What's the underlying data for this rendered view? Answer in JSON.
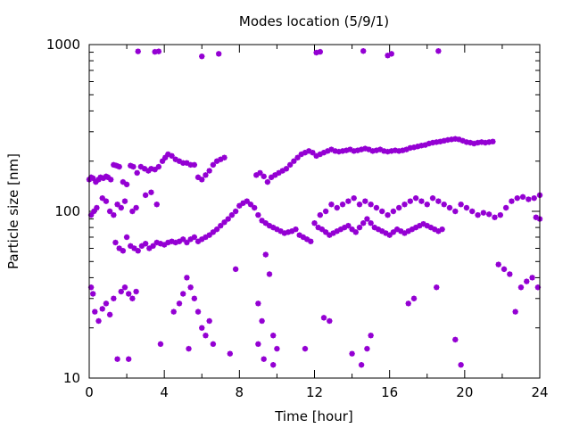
{
  "chart_data": {
    "type": "scatter",
    "title": "Modes location (5/9/1)",
    "xlabel": "Time [hour]",
    "ylabel": "Particle size [nm]",
    "xlim": [
      0,
      24
    ],
    "ylim": [
      10,
      1000
    ],
    "yscale": "log",
    "grid": false,
    "legend": "none",
    "marker_color": "#9400d3",
    "x_ticks": [
      0,
      4,
      8,
      12,
      16,
      20,
      24
    ],
    "x_tick_labels": [
      "0",
      "4",
      "8",
      "12",
      "16",
      "20",
      "24"
    ],
    "y_ticks": [
      10,
      100,
      1000
    ],
    "y_tick_labels": [
      "10",
      "100",
      "1000"
    ],
    "series": [
      {
        "points": [
          [
            0.0,
            155
          ],
          [
            0.1,
            160
          ],
          [
            0.2,
            158
          ],
          [
            0.35,
            150
          ],
          [
            0.5,
            155
          ],
          [
            0.6,
            160
          ],
          [
            0.75,
            158
          ],
          [
            0.9,
            162
          ],
          [
            1.0,
            160
          ],
          [
            1.15,
            155
          ],
          [
            1.3,
            190
          ],
          [
            1.45,
            188
          ],
          [
            1.6,
            185
          ],
          [
            1.8,
            150
          ],
          [
            2.0,
            145
          ],
          [
            2.2,
            188
          ],
          [
            2.35,
            185
          ],
          [
            2.55,
            170
          ],
          [
            2.75,
            185
          ],
          [
            2.95,
            180
          ],
          [
            3.15,
            175
          ],
          [
            3.3,
            180
          ],
          [
            3.5,
            178
          ],
          [
            3.7,
            185
          ],
          [
            3.9,
            200
          ],
          [
            4.05,
            210
          ],
          [
            4.2,
            220
          ],
          [
            4.4,
            215
          ],
          [
            4.6,
            205
          ],
          [
            4.8,
            200
          ],
          [
            5.0,
            195
          ],
          [
            5.2,
            195
          ],
          [
            5.4,
            190
          ],
          [
            5.6,
            190
          ],
          [
            5.8,
            160
          ],
          [
            6.0,
            155
          ],
          [
            6.2,
            165
          ],
          [
            6.4,
            175
          ],
          [
            6.6,
            190
          ],
          [
            6.8,
            200
          ],
          [
            7.0,
            205
          ],
          [
            7.2,
            210
          ],
          [
            8.9,
            165
          ],
          [
            9.1,
            170
          ],
          [
            9.3,
            162
          ],
          [
            9.5,
            150
          ],
          [
            9.7,
            160
          ],
          [
            9.9,
            165
          ],
          [
            10.1,
            170
          ],
          [
            10.3,
            175
          ],
          [
            10.5,
            180
          ],
          [
            10.7,
            190
          ],
          [
            10.9,
            200
          ],
          [
            11.1,
            210
          ],
          [
            11.3,
            220
          ],
          [
            11.5,
            225
          ],
          [
            11.7,
            230
          ],
          [
            11.9,
            225
          ],
          [
            12.1,
            215
          ],
          [
            12.3,
            220
          ],
          [
            12.5,
            225
          ],
          [
            12.7,
            230
          ],
          [
            12.9,
            235
          ],
          [
            13.1,
            230
          ],
          [
            13.3,
            228
          ],
          [
            13.5,
            230
          ],
          [
            13.7,
            232
          ],
          [
            13.9,
            235
          ],
          [
            14.1,
            230
          ],
          [
            14.3,
            232
          ],
          [
            14.5,
            235
          ],
          [
            14.7,
            238
          ],
          [
            14.9,
            235
          ],
          [
            15.1,
            230
          ],
          [
            15.3,
            232
          ],
          [
            15.5,
            235
          ],
          [
            15.7,
            230
          ],
          [
            15.9,
            228
          ],
          [
            16.1,
            230
          ],
          [
            16.3,
            232
          ],
          [
            16.5,
            230
          ],
          [
            16.7,
            232
          ],
          [
            16.9,
            235
          ],
          [
            17.1,
            240
          ],
          [
            17.3,
            242
          ],
          [
            17.5,
            245
          ],
          [
            17.7,
            248
          ],
          [
            17.9,
            250
          ],
          [
            18.1,
            255
          ],
          [
            18.3,
            258
          ],
          [
            18.5,
            260
          ],
          [
            18.7,
            262
          ],
          [
            18.9,
            265
          ],
          [
            19.1,
            268
          ],
          [
            19.3,
            270
          ],
          [
            19.5,
            272
          ],
          [
            19.7,
            270
          ],
          [
            19.9,
            265
          ],
          [
            20.1,
            260
          ],
          [
            20.3,
            258
          ],
          [
            20.5,
            255
          ],
          [
            20.7,
            258
          ],
          [
            20.9,
            260
          ],
          [
            21.1,
            258
          ],
          [
            21.3,
            260
          ],
          [
            21.5,
            262
          ],
          [
            0.1,
            95
          ],
          [
            0.25,
            100
          ],
          [
            0.4,
            105
          ],
          [
            0.7,
            120
          ],
          [
            0.9,
            115
          ],
          [
            1.1,
            100
          ],
          [
            1.3,
            95
          ],
          [
            1.5,
            110
          ],
          [
            1.7,
            105
          ],
          [
            1.9,
            115
          ],
          [
            2.3,
            100
          ],
          [
            2.5,
            105
          ],
          [
            3.0,
            125
          ],
          [
            3.3,
            130
          ],
          [
            3.6,
            110
          ],
          [
            1.4,
            65
          ],
          [
            1.6,
            60
          ],
          [
            1.8,
            58
          ],
          [
            2.0,
            70
          ],
          [
            2.2,
            62
          ],
          [
            2.4,
            60
          ],
          [
            2.6,
            58
          ],
          [
            2.8,
            62
          ],
          [
            3.0,
            64
          ],
          [
            3.2,
            60
          ],
          [
            3.4,
            62
          ],
          [
            3.6,
            65
          ],
          [
            3.8,
            64
          ],
          [
            4.0,
            63
          ],
          [
            4.2,
            65
          ],
          [
            4.4,
            66
          ],
          [
            4.6,
            65
          ],
          [
            4.8,
            66
          ],
          [
            5.0,
            68
          ],
          [
            5.2,
            65
          ],
          [
            5.4,
            68
          ],
          [
            5.6,
            70
          ],
          [
            5.8,
            66
          ],
          [
            6.0,
            68
          ],
          [
            6.2,
            70
          ],
          [
            6.4,
            72
          ],
          [
            6.6,
            75
          ],
          [
            6.8,
            78
          ],
          [
            7.0,
            82
          ],
          [
            7.2,
            86
          ],
          [
            7.4,
            90
          ],
          [
            7.6,
            95
          ],
          [
            7.8,
            100
          ],
          [
            8.0,
            108
          ],
          [
            8.2,
            112
          ],
          [
            8.4,
            115
          ],
          [
            8.6,
            110
          ],
          [
            8.8,
            105
          ],
          [
            9.0,
            95
          ],
          [
            9.2,
            88
          ],
          [
            9.4,
            85
          ],
          [
            9.6,
            82
          ],
          [
            9.8,
            80
          ],
          [
            10.0,
            78
          ],
          [
            10.2,
            76
          ],
          [
            10.4,
            74
          ],
          [
            10.6,
            75
          ],
          [
            10.8,
            76
          ],
          [
            11.0,
            78
          ],
          [
            11.2,
            72
          ],
          [
            11.4,
            70
          ],
          [
            11.6,
            68
          ],
          [
            11.8,
            66
          ],
          [
            12.0,
            85
          ],
          [
            12.2,
            80
          ],
          [
            12.4,
            78
          ],
          [
            12.6,
            75
          ],
          [
            12.8,
            72
          ],
          [
            13.0,
            74
          ],
          [
            13.2,
            76
          ],
          [
            13.4,
            78
          ],
          [
            13.6,
            80
          ],
          [
            13.8,
            82
          ],
          [
            14.0,
            78
          ],
          [
            14.2,
            75
          ],
          [
            14.4,
            80
          ],
          [
            14.6,
            85
          ],
          [
            14.8,
            90
          ],
          [
            15.0,
            85
          ],
          [
            15.2,
            80
          ],
          [
            15.4,
            78
          ],
          [
            15.6,
            76
          ],
          [
            15.8,
            74
          ],
          [
            16.0,
            72
          ],
          [
            16.2,
            75
          ],
          [
            16.4,
            78
          ],
          [
            16.6,
            76
          ],
          [
            16.8,
            74
          ],
          [
            17.0,
            76
          ],
          [
            17.2,
            78
          ],
          [
            17.4,
            80
          ],
          [
            17.6,
            82
          ],
          [
            17.8,
            84
          ],
          [
            18.0,
            82
          ],
          [
            18.2,
            80
          ],
          [
            18.4,
            78
          ],
          [
            18.6,
            76
          ],
          [
            18.8,
            78
          ],
          [
            12.3,
            95
          ],
          [
            12.6,
            100
          ],
          [
            12.9,
            110
          ],
          [
            13.2,
            105
          ],
          [
            13.5,
            110
          ],
          [
            13.8,
            115
          ],
          [
            14.1,
            120
          ],
          [
            14.4,
            110
          ],
          [
            14.7,
            115
          ],
          [
            15.0,
            110
          ],
          [
            15.3,
            105
          ],
          [
            15.6,
            100
          ],
          [
            15.9,
            95
          ],
          [
            16.2,
            100
          ],
          [
            16.5,
            105
          ],
          [
            16.8,
            110
          ],
          [
            17.1,
            115
          ],
          [
            17.4,
            120
          ],
          [
            17.7,
            115
          ],
          [
            18.0,
            110
          ],
          [
            18.3,
            120
          ],
          [
            18.6,
            115
          ],
          [
            18.9,
            110
          ],
          [
            19.2,
            105
          ],
          [
            19.5,
            100
          ],
          [
            19.8,
            110
          ],
          [
            20.1,
            105
          ],
          [
            20.4,
            100
          ],
          [
            20.7,
            95
          ],
          [
            21.0,
            98
          ],
          [
            21.3,
            96
          ],
          [
            21.6,
            92
          ],
          [
            21.9,
            95
          ],
          [
            22.2,
            105
          ],
          [
            22.5,
            115
          ],
          [
            22.8,
            120
          ],
          [
            23.1,
            122
          ],
          [
            23.4,
            118
          ],
          [
            23.7,
            120
          ],
          [
            24.0,
            125
          ],
          [
            23.8,
            92
          ],
          [
            24.0,
            90
          ],
          [
            0.1,
            35
          ],
          [
            0.2,
            32
          ],
          [
            0.3,
            25
          ],
          [
            0.5,
            22
          ],
          [
            0.7,
            26
          ],
          [
            0.9,
            28
          ],
          [
            1.1,
            24
          ],
          [
            1.3,
            30
          ],
          [
            1.7,
            33
          ],
          [
            1.9,
            35
          ],
          [
            2.1,
            32
          ],
          [
            2.3,
            30
          ],
          [
            2.5,
            33
          ],
          [
            4.5,
            25
          ],
          [
            4.8,
            28
          ],
          [
            5.0,
            32
          ],
          [
            5.2,
            40
          ],
          [
            5.4,
            35
          ],
          [
            5.6,
            30
          ],
          [
            5.8,
            25
          ],
          [
            6.0,
            20
          ],
          [
            6.2,
            18
          ],
          [
            6.4,
            22
          ],
          [
            6.6,
            16
          ],
          [
            5.3,
            15
          ],
          [
            7.8,
            45
          ],
          [
            9.0,
            28
          ],
          [
            9.2,
            22
          ],
          [
            9.4,
            55
          ],
          [
            9.6,
            42
          ],
          [
            9.8,
            18
          ],
          [
            10.0,
            15
          ],
          [
            12.5,
            23
          ],
          [
            12.8,
            22
          ],
          [
            17.0,
            28
          ],
          [
            17.3,
            30
          ],
          [
            18.5,
            35
          ],
          [
            21.8,
            48
          ],
          [
            22.1,
            45
          ],
          [
            22.4,
            42
          ],
          [
            22.7,
            25
          ],
          [
            23.0,
            35
          ],
          [
            23.3,
            38
          ],
          [
            23.6,
            40
          ],
          [
            23.9,
            35
          ],
          [
            1.5,
            13
          ],
          [
            2.1,
            13
          ],
          [
            3.8,
            16
          ],
          [
            7.5,
            14
          ],
          [
            9.0,
            16
          ],
          [
            9.3,
            13
          ],
          [
            9.8,
            12
          ],
          [
            11.5,
            15
          ],
          [
            14.0,
            14
          ],
          [
            14.5,
            12
          ],
          [
            14.8,
            15
          ],
          [
            15.0,
            18
          ],
          [
            19.5,
            17
          ],
          [
            19.8,
            12
          ],
          [
            2.6,
            910
          ],
          [
            3.5,
            905
          ],
          [
            3.7,
            910
          ],
          [
            6.0,
            850
          ],
          [
            6.9,
            880
          ],
          [
            12.1,
            895
          ],
          [
            12.3,
            905
          ],
          [
            14.6,
            915
          ],
          [
            15.9,
            860
          ],
          [
            16.1,
            880
          ],
          [
            18.6,
            915
          ]
        ]
      }
    ]
  }
}
